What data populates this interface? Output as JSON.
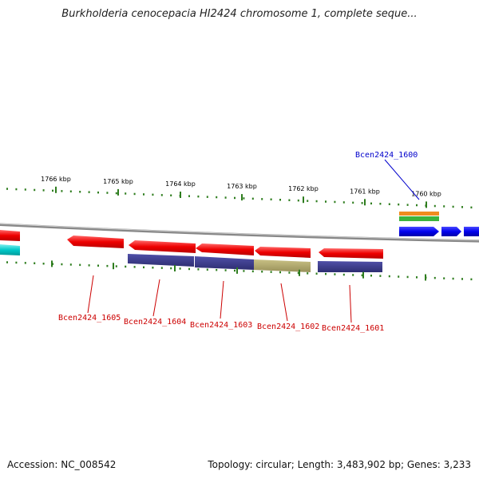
{
  "title": "Burkholderia cenocepacia HI2424 chromosome 1, complete seque...",
  "footer": {
    "accession_label": "Accession:",
    "accession": "NC_008542",
    "summary": "Topology: circular; Length: 3,483,902 bp; Genes: 3,233"
  },
  "colors": {
    "backbone": "#888888",
    "tick": "#2e7d1e",
    "forward_gene": "#0000ee",
    "reverse_gene": "#ee0000",
    "cyan_gene": "#00c8c8",
    "purple_block": "#3c3c8c",
    "olive_block": "#b4ac6c",
    "orange_feature": "#f08c1e",
    "green_feature": "#3cb43c",
    "label_blue": "#0000cc",
    "label_red": "#cc0000"
  },
  "scale_labels": [
    "1766 kbp",
    "1765 kbp",
    "1764 kbp",
    "1763 kbp",
    "1762 kbp",
    "1761 kbp",
    "1760 kbp"
  ],
  "gene_labels": {
    "top": [
      {
        "name": "Bcen2424_1600",
        "strand": "forward"
      }
    ],
    "bottom": [
      {
        "name": "Bcen2424_1605",
        "strand": "reverse"
      },
      {
        "name": "Bcen2424_1604",
        "strand": "reverse"
      },
      {
        "name": "Bcen2424_1603",
        "strand": "reverse"
      },
      {
        "name": "Bcen2424_1602",
        "strand": "reverse"
      },
      {
        "name": "Bcen2424_1601",
        "strand": "reverse"
      }
    ]
  }
}
